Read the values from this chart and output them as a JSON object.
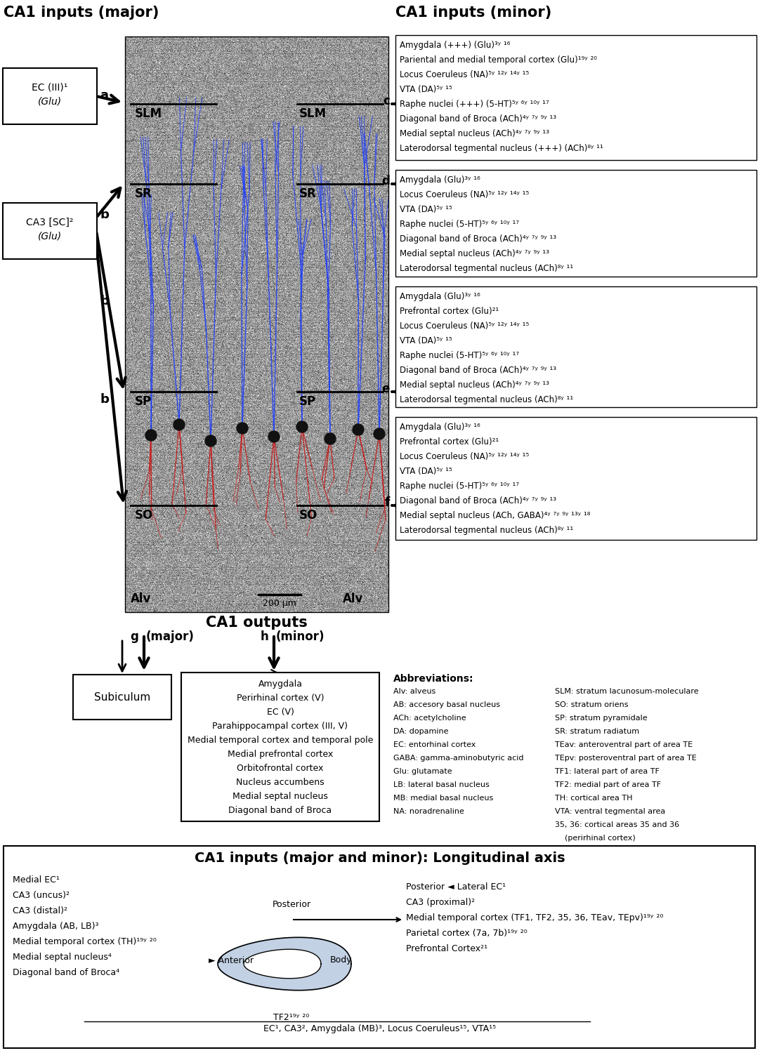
{
  "title_major": "CA1 inputs (major)",
  "title_minor": "CA1 inputs (minor)",
  "title_outputs": "CA1 outputs",
  "title_longitudinal": "CA1 inputs (major and minor): Longitudinal axis",
  "minor_c_lines": [
    "Amygdala (+++) (Glu)³ʸ ¹⁶",
    "Pariental and medial temporal cortex (Glu)¹⁹ʸ ²⁰",
    "Locus Coeruleus (NA)⁵ʸ ¹²ʸ ¹⁴ʸ ¹⁵",
    "VTA (DA)⁵ʸ ¹⁵",
    "Raphe nuclei (+++) (5-HT)⁵ʸ ⁶ʸ ¹⁰ʸ ¹⁷",
    "Diagonal band of Broca (ACh)⁴ʸ ⁷ʸ ⁹ʸ ¹³",
    "Medial septal nucleus (ACh)⁴ʸ ⁷ʸ ⁹ʸ ¹³",
    "Laterodorsal tegmental nucleus (+++) (ACh)⁸ʸ ¹¹"
  ],
  "minor_d_lines": [
    "Amygdala (Glu)³ʸ ¹⁶",
    "Locus Coeruleus (NA)⁵ʸ ¹²ʸ ¹⁴ʸ ¹⁵",
    "VTA (DA)⁵ʸ ¹⁵",
    "Raphe nuclei (5-HT)⁵ʸ ⁶ʸ ¹⁰ʸ ¹⁷",
    "Diagonal band of Broca (ACh)⁴ʸ ⁷ʸ ⁹ʸ ¹³",
    "Medial septal nucleus (ACh)⁴ʸ ⁷ʸ ⁹ʸ ¹³",
    "Laterodorsal tegmental nucleus (ACh)⁸ʸ ¹¹"
  ],
  "minor_e_lines": [
    "Amygdala (Glu)³ʸ ¹⁶",
    "Prefrontal cortex (Glu)²¹",
    "Locus Coeruleus (NA)⁵ʸ ¹²ʸ ¹⁴ʸ ¹⁵",
    "VTA (DA)⁵ʸ ¹⁵",
    "Raphe nuclei (5-HT)⁵ʸ ⁶ʸ ¹⁰ʸ ¹⁷",
    "Diagonal band of Broca (ACh)⁴ʸ ⁷ʸ ⁹ʸ ¹³",
    "Medial septal nucleus (ACh)⁴ʸ ⁷ʸ ⁹ʸ ¹³",
    "Laterodorsal tegmental nucleus (ACh)⁸ʸ ¹¹"
  ],
  "minor_f_lines": [
    "Amygdala (Glu)³ʸ ¹⁶",
    "Prefrontal cortex (Glu)²¹",
    "Locus Coeruleus (NA)⁵ʸ ¹²ʸ ¹⁴ʸ ¹⁵",
    "VTA (DA)⁵ʸ ¹⁵",
    "Raphe nuclei (5-HT)⁵ʸ ⁶ʸ ¹⁰ʸ ¹⁷",
    "Diagonal band of Broca (ACh)⁴ʸ ⁷ʸ ⁹ʸ ¹³",
    "Medial septal nucleus (ACh, GABA)⁴ʸ ⁷ʸ ⁹ʸ ¹³ʸ ¹⁸",
    "Laterodorsal tegmental nucleus (ACh)⁸ʸ ¹¹"
  ],
  "output_major_lines": [
    "Amygdala",
    "Perirhinal cortex (V)",
    "EC (V)",
    "Parahippocampal cortex (III, V)",
    "Medial temporal cortex and temporal pole",
    "Medial prefrontal cortex",
    "Orbitofrontal cortex",
    "Nucleus accumbens",
    "Medial septal nucleus",
    "Diagonal band of Broca"
  ],
  "abbrev_left": [
    "Alv: alveus",
    "AB: accesory basal nucleus",
    "ACh: acetylcholine",
    "DA: dopamine",
    "EC: entorhinal cortex",
    "GABA: gamma-aminobutyric acid",
    "Glu: glutamate",
    "LB: lateral basal nucleus",
    "MB: medial basal nucleus",
    "NA: noradrenaline"
  ],
  "abbrev_right": [
    "SLM: stratum lacunosum-moleculare",
    "SO: stratum oriens",
    "SP: stratum pyramidale",
    "SR: stratum radiatum",
    "TEav: anteroventral part of area TE",
    "TEpv: posteroventral part of area TE",
    "TF1: lateral part of area TF",
    "TF2: medial part of area TF",
    "TH: cortical area TH",
    "VTA: ventral tegmental area",
    "35, 36: cortical areas 35 and 36",
    "    (perirhinal cortex)"
  ],
  "long_left_lines": [
    "Medial EC¹",
    "CA3 (uncus)²",
    "CA3 (distal)²",
    "Amygdala (AB, LB)³",
    "Medial temporal cortex (TH)¹⁹ʸ ²⁰",
    "Medial septal nucleus⁴",
    "Diagonal band of Broca⁴"
  ],
  "long_right_lines": [
    "Posterior ◄ Lateral EC¹",
    "CA3 (proximal)²",
    "Medial temporal cortex (TF1, TF2, 35, 36, TEav, TEpv)¹⁹ʸ ²⁰",
    "Parietal cortex (7a, 7b)¹⁹ʸ ²⁰",
    "Prefrontal Cortex²¹"
  ],
  "long_bottom": "EC¹, CA3², Amygdala (MB)³, Locus Coeruleus¹⁵, VTA¹⁵"
}
